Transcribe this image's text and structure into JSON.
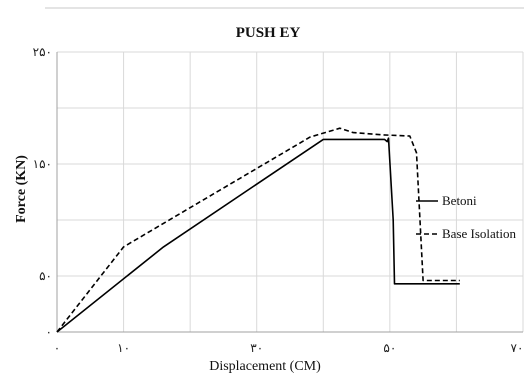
{
  "chart_data": {
    "type": "line",
    "title": "PUSH EY",
    "xlabel": "Displacement (CM)",
    "ylabel": "Force (KN)",
    "xlim": [
      0,
      70
    ],
    "ylim": [
      0,
      250
    ],
    "x_ticks": [
      {
        "value": 0,
        "label": "۰"
      },
      {
        "value": 10,
        "label": "۱۰"
      },
      {
        "value": 30,
        "label": "۳۰"
      },
      {
        "value": 50,
        "label": "۵۰"
      },
      {
        "value": 70,
        "label": "۷۰"
      }
    ],
    "x_grid": [
      0,
      10,
      20,
      30,
      40,
      50,
      60,
      70
    ],
    "y_ticks": [
      {
        "value": 0,
        "label": "۰"
      },
      {
        "value": 50,
        "label": "۵۰"
      },
      {
        "value": 150,
        "label": "۱۵۰"
      },
      {
        "value": 250,
        "label": "۲۵۰"
      }
    ],
    "y_grid": [
      50,
      100,
      150,
      200,
      250
    ],
    "grid": true,
    "legend_position": "right",
    "series": [
      {
        "name": "Betoni",
        "dash": "solid",
        "color": "#000000",
        "x": [
          0,
          16,
          40,
          49.2,
          49.6,
          49.8,
          50.5,
          50.7,
          60.5
        ],
        "y": [
          0,
          76,
          172,
          172,
          170,
          173,
          100,
          43,
          43
        ]
      },
      {
        "name": "Base Isolation",
        "dash": "dashed",
        "color": "#000000",
        "x": [
          0,
          10,
          22,
          38,
          42.5,
          44.5,
          49,
          53,
          54,
          55,
          60.5
        ],
        "y": [
          0,
          76,
          118,
          174,
          182,
          178,
          176,
          175,
          160,
          46,
          46
        ]
      }
    ]
  }
}
